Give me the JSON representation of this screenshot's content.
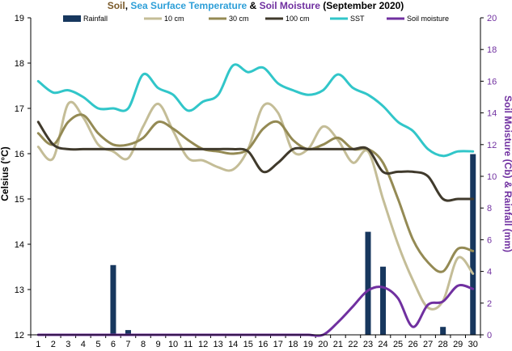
{
  "chart_data": {
    "type": "line",
    "title_parts": [
      {
        "text": "Soil",
        "color": "#7a5a2a"
      },
      {
        "text": ", ",
        "color": "#000000"
      },
      {
        "text": "Sea Surface Temperature",
        "color": "#2e9fd8"
      },
      {
        "text": " & ",
        "color": "#000000"
      },
      {
        "text": "Soil Moisture",
        "color": "#7030a0"
      },
      {
        "text": " (September 2020)",
        "color": "#000000"
      }
    ],
    "ylabel": "Celsius (°C)",
    "ylabel_right": "Soil Moisture (Cb) & Rainfall (mm)",
    "x": [
      1,
      2,
      3,
      4,
      5,
      6,
      7,
      8,
      9,
      10,
      11,
      12,
      13,
      14,
      15,
      16,
      17,
      18,
      19,
      20,
      21,
      22,
      23,
      24,
      25,
      26,
      27,
      28,
      29,
      30
    ],
    "ylim": [
      12,
      19
    ],
    "ylim_right": [
      0,
      20
    ],
    "yticks": [
      12,
      13,
      14,
      15,
      16,
      17,
      18,
      19
    ],
    "yticks_right": [
      0,
      2,
      4,
      6,
      8,
      10,
      12,
      14,
      16,
      18,
      20
    ],
    "grid": false,
    "legend_position": "top",
    "series": [
      {
        "name": "Rainfall",
        "type": "bar",
        "axis": "right",
        "color": "#17375e",
        "values": [
          0,
          0,
          0,
          0,
          0,
          4.4,
          0.3,
          0,
          0,
          0,
          0,
          0,
          0,
          0,
          0,
          0,
          0,
          0,
          0,
          0,
          0,
          0,
          6.5,
          4.3,
          0,
          0,
          0,
          0.5,
          0,
          11.4
        ]
      },
      {
        "name": "10 cm",
        "type": "line",
        "axis": "left",
        "color": "#c4bd97",
        "values": [
          16.15,
          15.9,
          17.1,
          16.8,
          16.2,
          16.05,
          15.9,
          16.6,
          17.1,
          16.5,
          15.9,
          15.85,
          15.7,
          15.65,
          16.1,
          17.05,
          16.9,
          16.05,
          16.1,
          16.6,
          16.3,
          15.8,
          16.05,
          15.0,
          14.0,
          13.2,
          12.6,
          12.75,
          13.7,
          13.35
        ]
      },
      {
        "name": "30 cm",
        "type": "line",
        "axis": "left",
        "color": "#948a54",
        "values": [
          16.45,
          16.2,
          16.7,
          16.85,
          16.45,
          16.2,
          16.2,
          16.35,
          16.7,
          16.55,
          16.3,
          16.1,
          16.05,
          16.0,
          16.1,
          16.55,
          16.7,
          16.3,
          16.1,
          16.2,
          16.35,
          16.1,
          16.1,
          15.8,
          15.0,
          14.1,
          13.6,
          13.4,
          13.9,
          13.85
        ]
      },
      {
        "name": "100 cm",
        "type": "line",
        "axis": "left",
        "color": "#403a2c",
        "values": [
          16.7,
          16.2,
          16.1,
          16.1,
          16.1,
          16.1,
          16.1,
          16.1,
          16.1,
          16.1,
          16.1,
          16.1,
          16.1,
          16.1,
          16.05,
          15.6,
          15.8,
          16.1,
          16.1,
          16.1,
          16.1,
          16.1,
          16.1,
          15.6,
          15.6,
          15.6,
          15.5,
          15.0,
          15.0,
          15.0
        ]
      },
      {
        "name": "SST",
        "type": "line",
        "axis": "left",
        "color": "#31c6c9",
        "values": [
          17.6,
          17.35,
          17.4,
          17.25,
          17.0,
          17.0,
          17.0,
          17.75,
          17.45,
          17.3,
          16.95,
          17.15,
          17.3,
          17.95,
          17.8,
          17.9,
          17.55,
          17.4,
          17.3,
          17.4,
          17.75,
          17.45,
          17.3,
          17.05,
          16.7,
          16.5,
          16.1,
          15.95,
          16.05,
          16.05
        ]
      },
      {
        "name": "Soil moisture",
        "type": "line",
        "axis": "right",
        "color": "#7030a0",
        "values": [
          0,
          0,
          0,
          0,
          0,
          0,
          0,
          0,
          0,
          0,
          0,
          0,
          0,
          0,
          0,
          0,
          0,
          0,
          0,
          0,
          0.8,
          1.8,
          2.8,
          3.0,
          2.3,
          0.5,
          1.9,
          2.1,
          3.1,
          2.9
        ]
      }
    ]
  }
}
